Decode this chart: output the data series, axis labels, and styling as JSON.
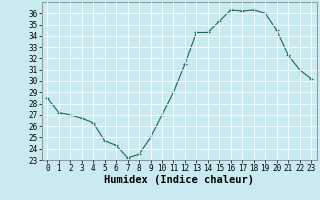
{
  "x": [
    0,
    1,
    2,
    3,
    4,
    5,
    6,
    7,
    8,
    9,
    10,
    11,
    12,
    13,
    14,
    15,
    16,
    17,
    18,
    19,
    20,
    21,
    22,
    23
  ],
  "y": [
    28.5,
    27.2,
    27.0,
    26.7,
    26.3,
    24.7,
    24.3,
    23.2,
    23.5,
    25.0,
    27.0,
    29.0,
    31.5,
    34.3,
    34.3,
    35.3,
    36.3,
    36.2,
    36.3,
    36.0,
    34.5,
    32.3,
    31.0,
    30.2
  ],
  "line_color": "#1a6b5a",
  "marker": "+",
  "bg_color": "#c8eaf0",
  "grid_color": "#ffffff",
  "xlabel": "Humidex (Indice chaleur)",
  "ylim": [
    23,
    37
  ],
  "xlim": [
    -0.5,
    23.5
  ],
  "yticks": [
    23,
    24,
    25,
    26,
    27,
    28,
    29,
    30,
    31,
    32,
    33,
    34,
    35,
    36
  ],
  "xticks": [
    0,
    1,
    2,
    3,
    4,
    5,
    6,
    7,
    8,
    9,
    10,
    11,
    12,
    13,
    14,
    15,
    16,
    17,
    18,
    19,
    20,
    21,
    22,
    23
  ],
  "tick_fontsize": 5.5,
  "label_fontsize": 7.5
}
